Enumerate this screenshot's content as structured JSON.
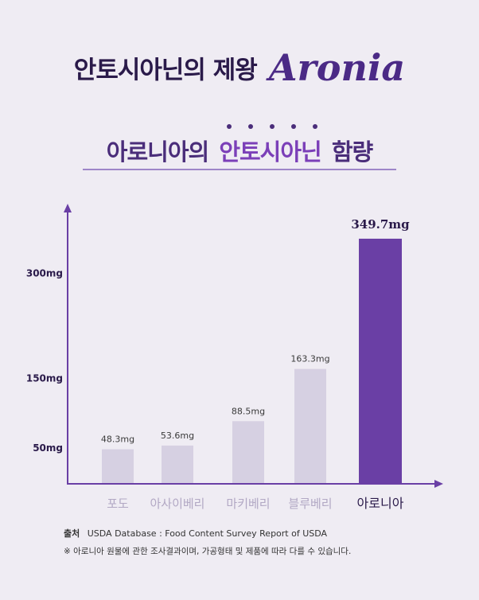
{
  "header": {
    "title_korean": "안토시아닌의 제왕",
    "title_brand": "Aronia",
    "subtitle_part1": "아로니아의",
    "subtitle_accent": "안토시아닌",
    "subtitle_part2": "함량"
  },
  "colors": {
    "background": "#efecf3",
    "bar_default": "#d6d0e2",
    "bar_highlight": "#6a3fa5",
    "axis": "#6a3fa5"
  },
  "chart_data": {
    "type": "bar",
    "categories": [
      "포도",
      "아사이베리",
      "마키베리",
      "블루베리",
      "아로니아"
    ],
    "values": [
      48.3,
      53.6,
      88.5,
      163.3,
      349.7
    ],
    "value_labels": [
      "48.3mg",
      "53.6mg",
      "88.5mg",
      "163.3mg",
      "349.7mg"
    ],
    "highlight_index": 4,
    "y_ticks": [
      {
        "value": 50,
        "label": "50mg"
      },
      {
        "value": 150,
        "label": "150mg"
      },
      {
        "value": 300,
        "label": "300mg"
      }
    ],
    "xlabel": "",
    "ylabel": "",
    "grid": false
  },
  "footer": {
    "source_label": "출처",
    "source_text": "USDA Database : Food Content Survey Report of USDA",
    "note": "※ 아로니아 원물에 관한 조사결과이며, 가공형태 및 제품에 따라 다를 수 있습니다."
  }
}
